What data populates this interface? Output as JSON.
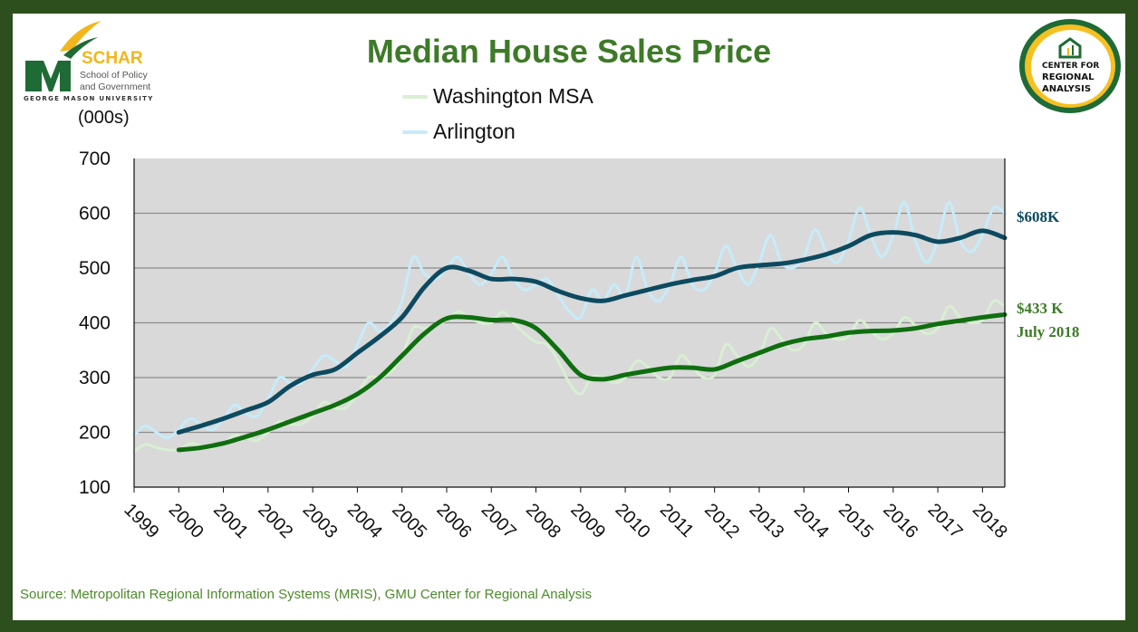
{
  "title": "Median House Sales Price",
  "unit_label": "(000s)",
  "logo_left": {
    "name": "SCHAR",
    "line1": "School of Policy",
    "line2": "and Government",
    "university": "GEORGE MASON UNIVERSITY"
  },
  "logo_right": {
    "line1": "Center for",
    "line2": "Regional",
    "line3": "Analysis"
  },
  "source": "Source: Metropolitan Regional Information Systems (MRIS), GMU Center for Regional Analysis",
  "annotations": {
    "arlington_latest": "$608K",
    "washington_latest": "$433 K",
    "washington_date": "July 2018"
  },
  "colors": {
    "frame": "#2d4f1e",
    "title": "#3e7a28",
    "washington_raw": "#d8efd2",
    "washington_avg": "#0f6e0f",
    "arlington_raw": "#c6ecfb",
    "arlington_avg": "#0d4a60",
    "plot_bg": "#d9d9d9"
  },
  "chart_data": {
    "type": "line",
    "title": "Median House Sales Price",
    "ylabel": "(000s)",
    "xlabel": "",
    "ylim": [
      100,
      700
    ],
    "xlim": [
      1999,
      2018.5
    ],
    "yticks": [
      "100",
      "200",
      "300",
      "400",
      "500",
      "600",
      "700"
    ],
    "xticks": [
      "1999",
      "2000",
      "2001",
      "2002",
      "2003",
      "2004",
      "2005",
      "2006",
      "2007",
      "2008",
      "2009",
      "2010",
      "2011",
      "2012",
      "2013",
      "2014",
      "2015",
      "2016",
      "2017",
      "2018"
    ],
    "grid": true,
    "legend": "top-center",
    "series": [
      {
        "name": "Washington MSA",
        "key": "washington_raw",
        "x_start": 1999,
        "x_step": 0.25,
        "values": [
          165,
          178,
          172,
          168,
          168,
          180,
          175,
          172,
          180,
          195,
          190,
          185,
          200,
          220,
          215,
          215,
          230,
          255,
          245,
          245,
          270,
          300,
          300,
          310,
          340,
          390,
          390,
          395,
          405,
          420,
          410,
          400,
          400,
          420,
          400,
          380,
          365,
          360,
          330,
          290,
          270,
          300,
          300,
          290,
          300,
          330,
          320,
          300,
          300,
          340,
          320,
          300,
          305,
          360,
          340,
          320,
          340,
          390,
          370,
          350,
          360,
          400,
          380,
          370,
          375,
          405,
          385,
          370,
          380,
          410,
          395,
          380,
          390,
          430,
          410,
          400,
          405,
          440,
          430
        ]
      },
      {
        "name": "Arlington",
        "key": "arlington_raw",
        "x_start": 1999,
        "x_step": 0.25,
        "values": [
          195,
          212,
          200,
          190,
          205,
          225,
          215,
          205,
          225,
          250,
          235,
          230,
          260,
          300,
          290,
          290,
          315,
          340,
          330,
          320,
          360,
          400,
          385,
          400,
          440,
          520,
          490,
          480,
          500,
          520,
          490,
          470,
          490,
          520,
          480,
          460,
          470,
          480,
          450,
          420,
          410,
          460,
          440,
          470,
          450,
          520,
          460,
          440,
          470,
          520,
          470,
          460,
          490,
          540,
          500,
          470,
          510,
          560,
          510,
          500,
          520,
          570,
          530,
          510,
          550,
          610,
          560,
          520,
          560,
          620,
          550,
          510,
          550,
          620,
          550,
          530,
          560,
          610,
          600
        ]
      },
      {
        "key": "washington_avg",
        "x_start": 2000,
        "x_step": 0.5,
        "values": [
          168,
          172,
          180,
          192,
          205,
          220,
          235,
          250,
          270,
          300,
          340,
          380,
          408,
          410,
          405,
          405,
          390,
          350,
          305,
          297,
          305,
          312,
          318,
          318,
          315,
          330,
          345,
          360,
          370,
          375,
          382,
          385,
          386,
          390,
          398,
          404,
          410,
          415
        ]
      },
      {
        "key": "arlington_avg",
        "x_start": 2000,
        "x_step": 0.5,
        "values": [
          200,
          212,
          225,
          240,
          255,
          285,
          305,
          315,
          345,
          375,
          410,
          465,
          500,
          495,
          480,
          480,
          475,
          458,
          445,
          440,
          450,
          460,
          470,
          478,
          485,
          500,
          505,
          508,
          515,
          525,
          540,
          560,
          565,
          560,
          548,
          555,
          568,
          555
        ]
      }
    ]
  }
}
